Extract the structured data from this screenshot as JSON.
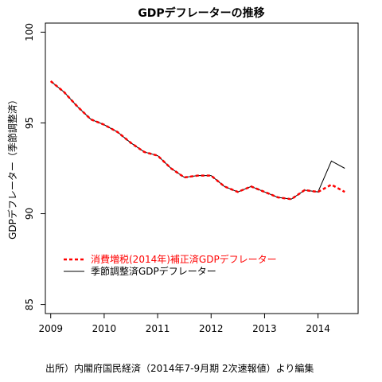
{
  "chart_data": {
    "type": "line",
    "title": "GDPデフレーターの推移",
    "xlabel": "",
    "ylabel": "GDPデフレーター（季節調整済）",
    "xlim": [
      2008.9,
      2014.75
    ],
    "ylim": [
      84.5,
      100.5
    ],
    "xticks": [
      2009,
      2010,
      2011,
      2012,
      2013,
      2014
    ],
    "xtick_labels": [
      "2009",
      "2010",
      "2011",
      "2012",
      "2013",
      "2014"
    ],
    "yticks": [
      85,
      90,
      95,
      100
    ],
    "ytick_labels": [
      "85",
      "90",
      "95",
      "100"
    ],
    "grid": false,
    "legend_position": "bottom-left",
    "x": [
      2009.0,
      2009.25,
      2009.5,
      2009.75,
      2010.0,
      2010.25,
      2010.5,
      2010.75,
      2011.0,
      2011.25,
      2011.5,
      2011.75,
      2012.0,
      2012.25,
      2012.5,
      2012.75,
      2013.0,
      2013.25,
      2013.5,
      2013.75,
      2014.0,
      2014.25,
      2014.5
    ],
    "series": [
      {
        "name": "消費増税(2014年)補正済GDPデフレーター",
        "color": "#ff0000",
        "style": "dashed",
        "values": [
          97.3,
          96.7,
          95.9,
          95.2,
          94.9,
          94.5,
          93.9,
          93.4,
          93.2,
          92.5,
          92.0,
          92.1,
          92.1,
          91.5,
          91.2,
          91.5,
          91.2,
          90.9,
          90.8,
          91.3,
          91.2,
          91.6,
          91.2
        ]
      },
      {
        "name": "季節調整済GDPデフレーター",
        "color": "#000000",
        "style": "solid",
        "values": [
          97.3,
          96.7,
          95.9,
          95.2,
          94.9,
          94.5,
          93.9,
          93.4,
          93.2,
          92.5,
          92.0,
          92.1,
          92.1,
          91.5,
          91.2,
          91.5,
          91.2,
          90.9,
          90.8,
          91.3,
          91.2,
          92.9,
          92.5
        ]
      }
    ],
    "annotation": "出所）内閣府国民経済（2014年7-9月期 2次速報値）より編集"
  }
}
